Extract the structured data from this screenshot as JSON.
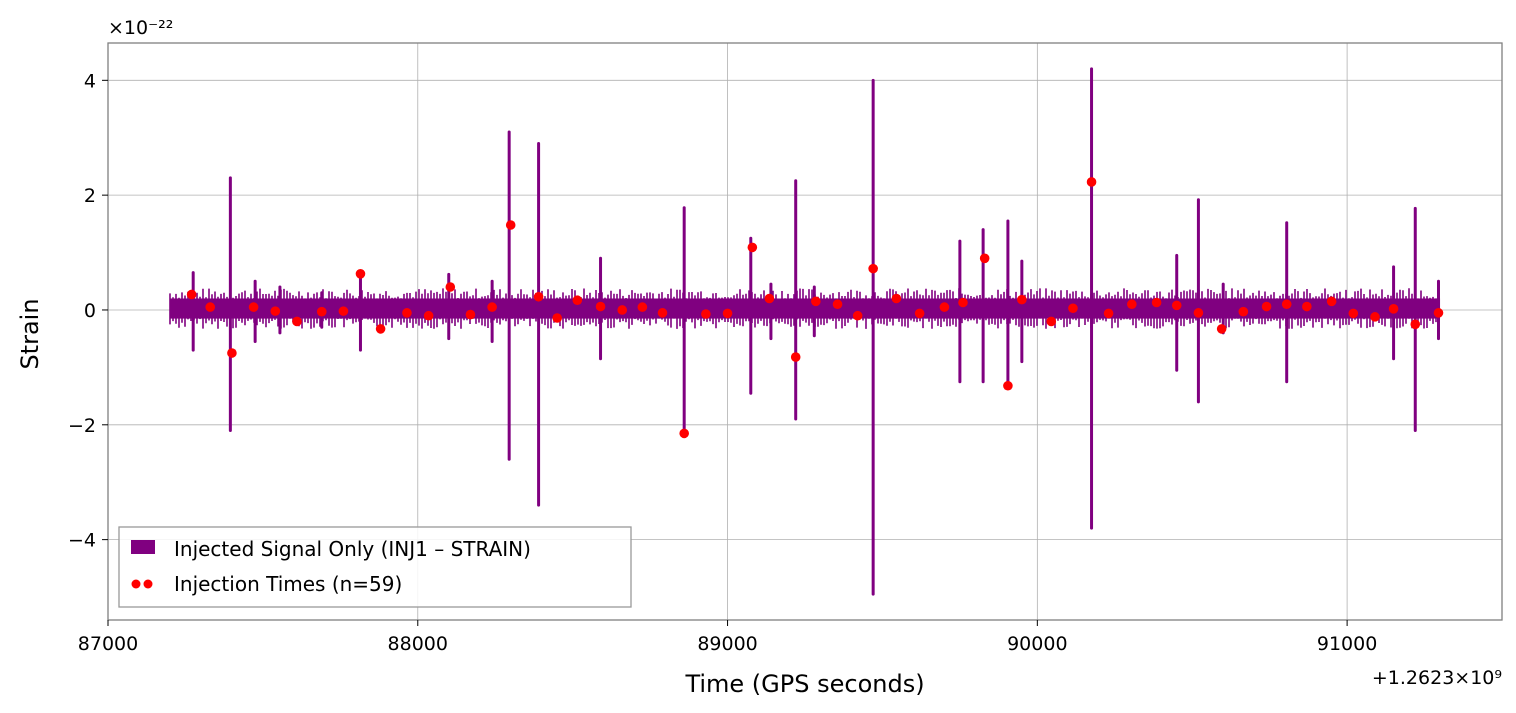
{
  "chart_data": {
    "type": "line",
    "title": "",
    "xlabel": "Time (GPS seconds)",
    "ylabel": "Strain",
    "x_offset_label": "+1.2623×10⁹",
    "y_multiplier_label": "×10⁻²²",
    "xlim": [
      87000,
      91500
    ],
    "ylim": [
      -5.4,
      4.65
    ],
    "x_ticks": [
      87000,
      88000,
      89000,
      90000,
      91000
    ],
    "x_tick_labels": [
      "87000",
      "88000",
      "89000",
      "90000",
      "91000"
    ],
    "y_ticks": [
      -4,
      -2,
      0,
      2,
      4
    ],
    "y_tick_labels": [
      "−4",
      "−2",
      "0",
      "2",
      "4"
    ],
    "grid": true,
    "legend_position": "lower-left",
    "signal_range": [
      87200,
      91300
    ],
    "series": [
      {
        "name": "Injected Signal Only (INJ1 – STRAIN)",
        "kind": "signal",
        "color": "#800080",
        "noise_band": [
          -0.15,
          0.2
        ],
        "spikes": [
          {
            "t": 87275,
            "max": 0.65,
            "min": -0.7
          },
          {
            "t": 87395,
            "max": 2.3,
            "min": -2.1
          },
          {
            "t": 87475,
            "max": 0.5,
            "min": -0.55
          },
          {
            "t": 87555,
            "max": 0.4,
            "min": -0.4
          },
          {
            "t": 87690,
            "max": 0.3,
            "min": -0.3
          },
          {
            "t": 87815,
            "max": 0.65,
            "min": -0.7
          },
          {
            "t": 88100,
            "max": 0.62,
            "min": -0.5
          },
          {
            "t": 88240,
            "max": 0.5,
            "min": -0.55
          },
          {
            "t": 88295,
            "max": 3.1,
            "min": -2.6
          },
          {
            "t": 88390,
            "max": 2.9,
            "min": -3.4
          },
          {
            "t": 88590,
            "max": 0.9,
            "min": -0.85
          },
          {
            "t": 88860,
            "max": 1.78,
            "min": -2.2
          },
          {
            "t": 89075,
            "max": 1.25,
            "min": -1.45
          },
          {
            "t": 89140,
            "max": 0.45,
            "min": -0.5
          },
          {
            "t": 89220,
            "max": 2.25,
            "min": -1.9
          },
          {
            "t": 89280,
            "max": 0.4,
            "min": -0.45
          },
          {
            "t": 89470,
            "max": 4.0,
            "min": -4.95
          },
          {
            "t": 89750,
            "max": 1.2,
            "min": -1.25
          },
          {
            "t": 89825,
            "max": 1.4,
            "min": -1.25
          },
          {
            "t": 89905,
            "max": 1.55,
            "min": -1.3
          },
          {
            "t": 89950,
            "max": 0.85,
            "min": -0.9
          },
          {
            "t": 90175,
            "max": 4.2,
            "min": -3.8
          },
          {
            "t": 90450,
            "max": 0.95,
            "min": -1.05
          },
          {
            "t": 90520,
            "max": 1.92,
            "min": -1.6
          },
          {
            "t": 90600,
            "max": 0.45,
            "min": -0.4
          },
          {
            "t": 90805,
            "max": 1.52,
            "min": -1.25
          },
          {
            "t": 91150,
            "max": 0.75,
            "min": -0.85
          },
          {
            "t": 91220,
            "max": 1.77,
            "min": -2.1
          },
          {
            "t": 91295,
            "max": 0.5,
            "min": -0.5
          }
        ]
      },
      {
        "name": "Injection Times (n=59)",
        "kind": "markers",
        "color": "#ff0000",
        "points": [
          [
            87270,
            0.27
          ],
          [
            87330,
            0.05
          ],
          [
            87400,
            -0.75
          ],
          [
            87470,
            0.05
          ],
          [
            87540,
            -0.02
          ],
          [
            87610,
            -0.2
          ],
          [
            87690,
            -0.03
          ],
          [
            87760,
            -0.02
          ],
          [
            87815,
            0.63
          ],
          [
            87880,
            -0.33
          ],
          [
            87965,
            -0.05
          ],
          [
            88035,
            -0.1
          ],
          [
            88105,
            0.4
          ],
          [
            88170,
            -0.08
          ],
          [
            88240,
            0.05
          ],
          [
            88300,
            1.48
          ],
          [
            88390,
            0.23
          ],
          [
            88450,
            -0.14
          ],
          [
            88515,
            0.17
          ],
          [
            88590,
            0.06
          ],
          [
            88660,
            0.0
          ],
          [
            88725,
            0.05
          ],
          [
            88790,
            -0.05
          ],
          [
            88860,
            -2.15
          ],
          [
            88930,
            -0.07
          ],
          [
            89000,
            -0.06
          ],
          [
            89080,
            1.09
          ],
          [
            89135,
            0.2
          ],
          [
            89220,
            -0.82
          ],
          [
            89285,
            0.15
          ],
          [
            89355,
            0.1
          ],
          [
            89420,
            -0.1
          ],
          [
            89470,
            0.72
          ],
          [
            89545,
            0.2
          ],
          [
            89620,
            -0.06
          ],
          [
            89700,
            0.05
          ],
          [
            89760,
            0.13
          ],
          [
            89830,
            0.9
          ],
          [
            89905,
            -1.32
          ],
          [
            89950,
            0.18
          ],
          [
            90045,
            -0.2
          ],
          [
            90115,
            0.03
          ],
          [
            90175,
            2.23
          ],
          [
            90230,
            -0.06
          ],
          [
            90305,
            0.1
          ],
          [
            90385,
            0.13
          ],
          [
            90450,
            0.08
          ],
          [
            90520,
            -0.05
          ],
          [
            90595,
            -0.33
          ],
          [
            90665,
            -0.03
          ],
          [
            90740,
            0.06
          ],
          [
            90805,
            0.1
          ],
          [
            90870,
            0.06
          ],
          [
            90950,
            0.15
          ],
          [
            91020,
            -0.06
          ],
          [
            91090,
            -0.12
          ],
          [
            91150,
            0.02
          ],
          [
            91220,
            -0.25
          ],
          [
            91295,
            -0.05
          ]
        ]
      }
    ]
  }
}
